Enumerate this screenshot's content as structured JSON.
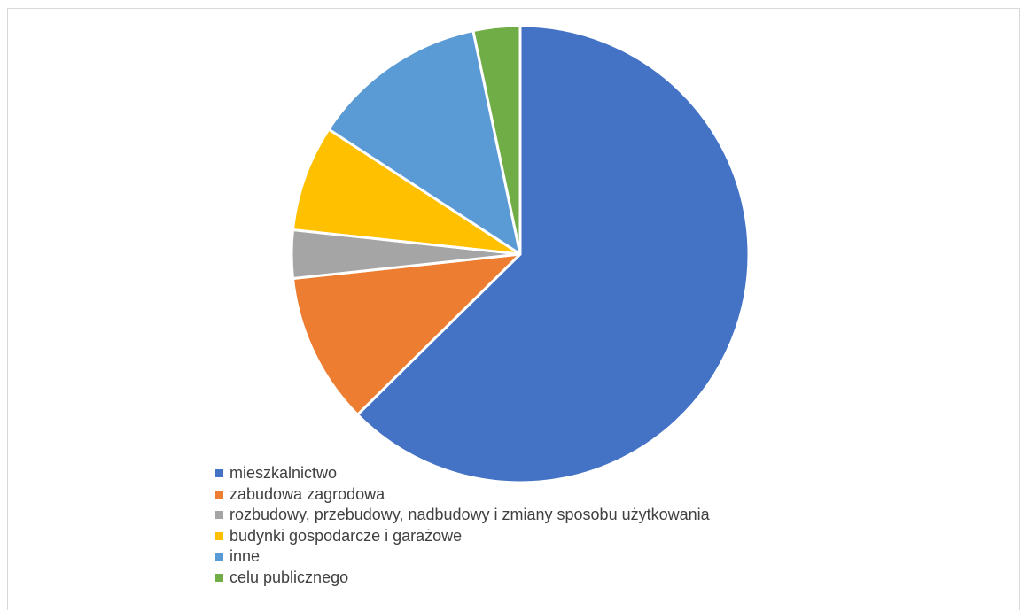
{
  "chart_data": {
    "type": "pie",
    "title": "",
    "start_angle_deg": 0,
    "direction": "clockwise",
    "slices": [
      {
        "label": "mieszkalnictwo",
        "value": 62.6,
        "color": "#4472C4"
      },
      {
        "label": "zabudowa zagrodowa",
        "value": 10.7,
        "color": "#ED7D31"
      },
      {
        "label": "rozbudowy, przebudowy, nadbudowy i zmiany sposobu użytkowania",
        "value": 3.4,
        "color": "#A5A5A5"
      },
      {
        "label": "budynki gospodarcze i garażowe",
        "value": 7.5,
        "color": "#FFC000"
      },
      {
        "label": "inne",
        "value": 12.5,
        "color": "#5B9BD5"
      },
      {
        "label": "celu publicznego",
        "value": 3.3,
        "color": "#70AD47"
      }
    ],
    "legend_position": "bottom-left",
    "data_labels": false
  }
}
